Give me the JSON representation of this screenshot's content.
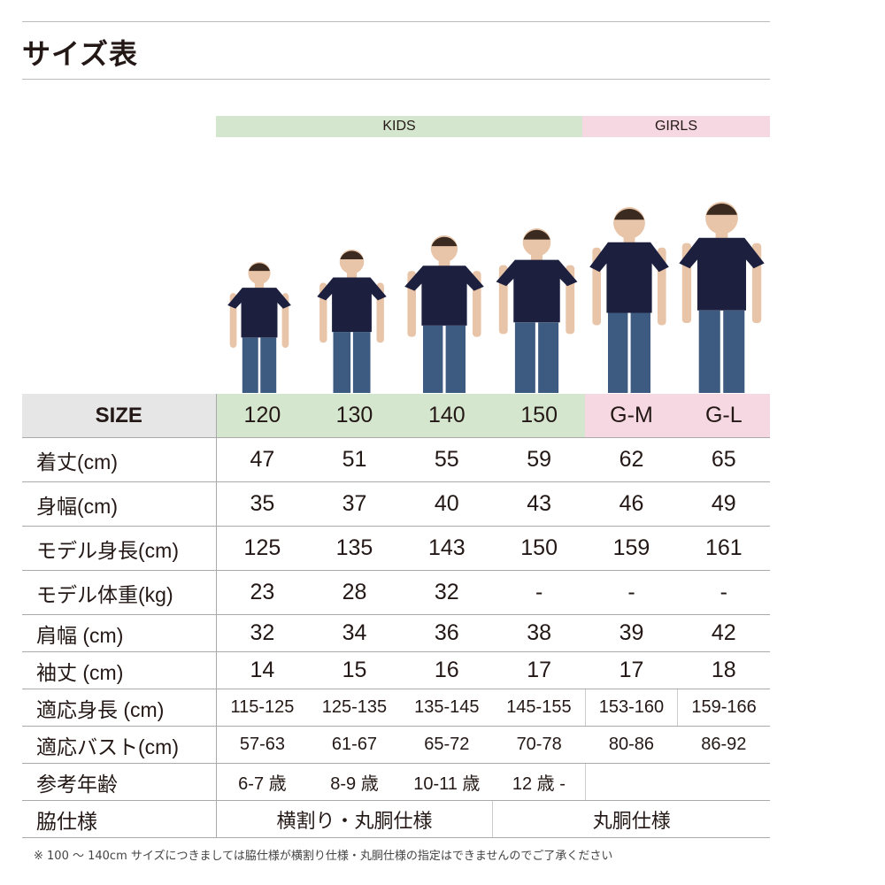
{
  "title": "サイズ表",
  "bands": {
    "kids": "KIDS",
    "girls": "GIRLS"
  },
  "colors": {
    "kids": "#d5e6cf",
    "girls": "#f5d8e1",
    "size_label_bg": "#e6e6e6",
    "shirt": "#1c1f3e",
    "jeans": "#3d5a80"
  },
  "header": {
    "label": "SIZE",
    "sizes": [
      "120",
      "130",
      "140",
      "150",
      "G-M",
      "G-L"
    ]
  },
  "rows": [
    {
      "label": "着丈(cm)",
      "values": [
        "47",
        "51",
        "55",
        "59",
        "62",
        "65"
      ]
    },
    {
      "label": "身幅(cm)",
      "values": [
        "35",
        "37",
        "40",
        "43",
        "46",
        "49"
      ]
    },
    {
      "label": "モデル身長(cm)",
      "values": [
        "125",
        "135",
        "143",
        "150",
        "159",
        "161"
      ]
    },
    {
      "label": "モデル体重(kg)",
      "values": [
        "23",
        "28",
        "32",
        "-",
        "-",
        "-"
      ]
    },
    {
      "label": "肩幅 (cm)",
      "values": [
        "32",
        "34",
        "36",
        "38",
        "39",
        "42"
      ]
    },
    {
      "label": "袖丈 (cm)",
      "values": [
        "14",
        "15",
        "16",
        "17",
        "17",
        "18"
      ]
    },
    {
      "label": "適応身長 (cm)",
      "values": [
        "115-125",
        "125-135",
        "135-145",
        "145-155",
        "153-160",
        "159-166"
      ]
    },
    {
      "label": "適応バスト(cm)",
      "values": [
        "57-63",
        "61-67",
        "65-72",
        "70-78",
        "80-86",
        "86-92"
      ]
    },
    {
      "label": "参考年齢",
      "values": [
        "6-7 歳",
        "8-9 歳",
        "10-11 歳",
        "12 歳 -"
      ]
    },
    {
      "label": "脇仕様",
      "values": [
        "横割り・丸胴仕様",
        "丸胴仕様"
      ]
    }
  ],
  "note": "※ 100 ～ 140cm サイズにつきましては脇仕様が横割り仕様・丸胴仕様の指定はできませんのでご了承ください"
}
